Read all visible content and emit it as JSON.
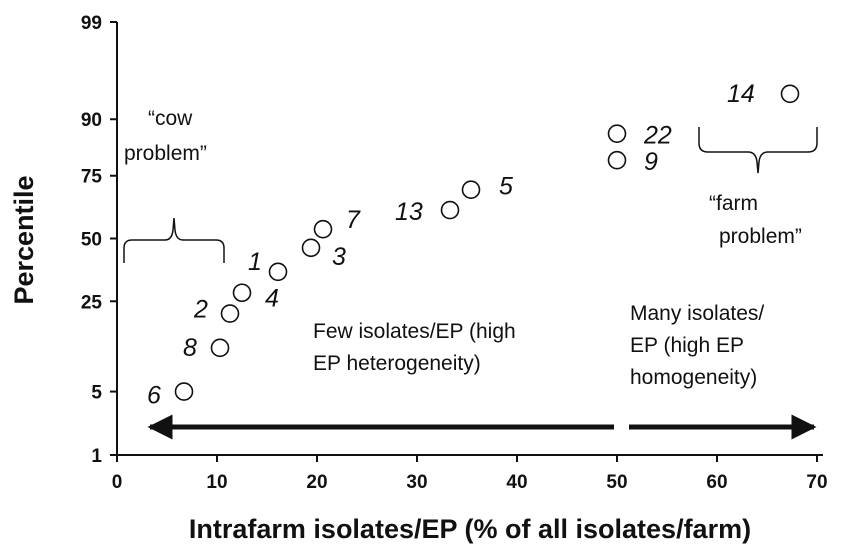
{
  "chart_data": {
    "type": "scatter",
    "xlabel": "Intrafarm isolates/EP (% of all isolates/farm)",
    "ylabel": "Percentile",
    "xlim": [
      0,
      70
    ],
    "x_ticks": [
      "0",
      "10",
      "20",
      "30",
      "40",
      "50",
      "60",
      "70"
    ],
    "y_ticks": [
      "1",
      "5",
      "25",
      "50",
      "75",
      "90",
      "99"
    ],
    "y_scale": "probability",
    "grid": false,
    "points": [
      {
        "label": "6",
        "x": 6.7,
        "y": 5
      },
      {
        "label": "8",
        "x": 10.3,
        "y": 12
      },
      {
        "label": "2",
        "x": 11.3,
        "y": 21
      },
      {
        "label": "4",
        "x": 12.5,
        "y": 28
      },
      {
        "label": "1",
        "x": 16.1,
        "y": 36
      },
      {
        "label": "3",
        "x": 19.4,
        "y": 46
      },
      {
        "label": "7",
        "x": 20.6,
        "y": 54
      },
      {
        "label": "13",
        "x": 33.3,
        "y": 62
      },
      {
        "label": "5",
        "x": 35.4,
        "y": 70
      },
      {
        "label": "9",
        "x": 50.0,
        "y": 80
      },
      {
        "label": "22",
        "x": 50.0,
        "y": 87
      },
      {
        "label": "14",
        "x": 67.3,
        "y": 94
      }
    ],
    "annotations": {
      "cow_problem": [
        "“cow",
        "problem”"
      ],
      "farm_problem": [
        "“farm",
        "problem”"
      ],
      "few_isolates": [
        "Few isolates/EP (high",
        "EP heterogeneity)"
      ],
      "many_isolates": [
        "Many isolates/",
        "EP (high EP",
        "homogeneity)"
      ]
    }
  }
}
